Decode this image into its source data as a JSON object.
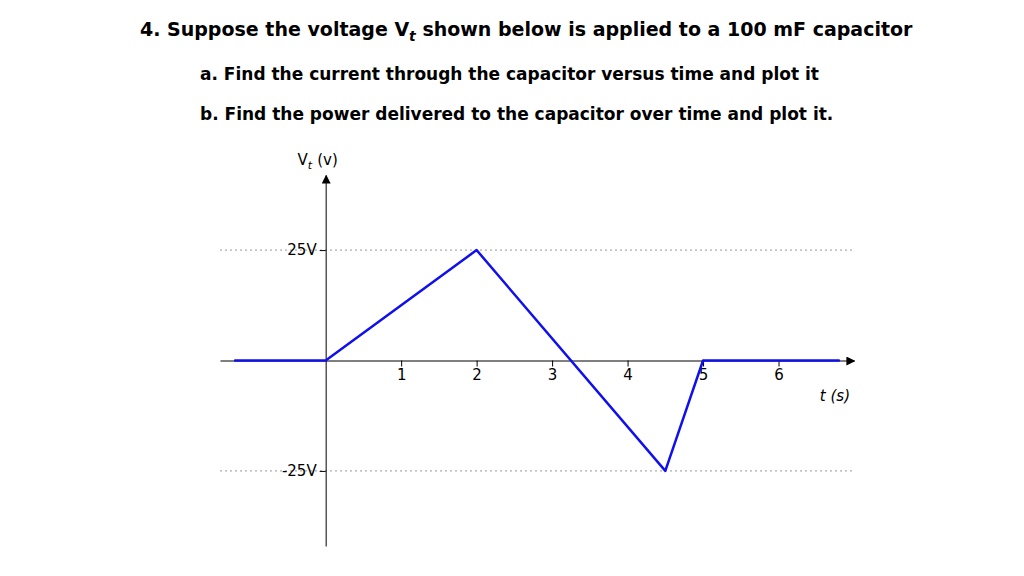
{
  "chart_data": {
    "type": "line",
    "title": [
      "4. Suppose the voltage V",
      "t",
      " shown below is applied to a 100 mF capacitor"
    ],
    "subtitle": [
      "a.  Find the current through the capacitor versus time and plot it",
      "b.  Find the power delivered to the capacitor over time and plot it."
    ],
    "xlabel": "t (s)",
    "ylabel": [
      "V",
      "t",
      "(v)"
    ],
    "x": [
      -1.2,
      0,
      2,
      4.5,
      5,
      6.8
    ],
    "values": [
      0,
      0,
      25,
      -25,
      0,
      0
    ],
    "color": "#1010ee",
    "xlim": [
      -1.4,
      7.0
    ],
    "ylim": [
      -42,
      42
    ],
    "xticks": [
      1,
      2,
      3,
      4,
      5,
      6
    ],
    "yticks": [
      {
        "value": 25,
        "label": "25V"
      },
      {
        "value": -25,
        "label": "-25V"
      }
    ],
    "grid": "y"
  }
}
